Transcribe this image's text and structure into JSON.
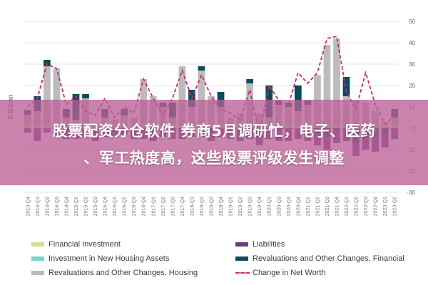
{
  "banner": {
    "line1": "股票配资分仓软件 券商5月调研忙，电子、医药",
    "line2": "、军工热度高，这些股票评级发生调整"
  },
  "legend": [
    {
      "label": "Financial Investment",
      "color": "#d4dc8e",
      "kind": "bar"
    },
    {
      "label": "Liabilities",
      "color": "#6b3b7e",
      "kind": "bar"
    },
    {
      "label": "Investment in New Housing Assets",
      "color": "#7fd0c8",
      "kind": "bar"
    },
    {
      "label": "Revaluations and Other Changes, Financial",
      "color": "#0d4a5e",
      "kind": "bar"
    },
    {
      "label": "Revaluations and Other Changes, Housing",
      "color": "#bcbcbc",
      "kind": "bar"
    },
    {
      "label": "Change in Net Worth",
      "color": "#c92d6e",
      "kind": "line"
    }
  ],
  "chart_data": {
    "type": "bar",
    "ylabel": "$ Billion",
    "ylim": [
      -30,
      50
    ],
    "yticks": [
      50,
      40,
      30,
      20,
      10,
      0,
      -10,
      -20,
      -30
    ],
    "categories": [
      "2013-Q4",
      "2014-Q1",
      "2014-Q2",
      "2014-Q3",
      "2014-Q4",
      "2015-Q1",
      "2015-Q2",
      "2015-Q3",
      "2015-Q4",
      "2016-Q1",
      "2016-Q2",
      "2016-Q3",
      "2016-Q4",
      "2017-Q1",
      "2017-Q2",
      "2017-Q3",
      "2017-Q4",
      "2018-Q1",
      "2018-Q2",
      "2018-Q3",
      "2018-Q4",
      "2019-Q1",
      "2019-Q2",
      "2019-Q3",
      "2019-Q4",
      "2020-Q1",
      "2020-Q2",
      "2020-Q3",
      "2020-Q4",
      "2021-Q1",
      "2021-Q2",
      "2021-Q3",
      "2021-Q4",
      "2022-Q1",
      "2022-Q2",
      "2022-Q3",
      "2022-Q4",
      "2023-Q1",
      "2023-Q2"
    ],
    "series": [
      {
        "name": "Financial Investment",
        "color": "#d4dc8e",
        "values": [
          2,
          1.5,
          1.5,
          1.5,
          1.5,
          1.5,
          1.5,
          1.5,
          1.5,
          1.5,
          1.5,
          1.5,
          1.5,
          1.5,
          1.5,
          1.5,
          1.5,
          1.5,
          1.5,
          1.5,
          1.5,
          1.5,
          1.5,
          1.5,
          1.5,
          1.5,
          1.5,
          1.5,
          1.5,
          1.5,
          1.5,
          1.5,
          1.5,
          1.5,
          1.5,
          1.5,
          1.5,
          1.5,
          1.5
        ]
      },
      {
        "name": "Investment in New Housing Assets",
        "color": "#7fd0c8",
        "values": [
          0.5,
          0.5,
          0.5,
          0.5,
          0.5,
          0.5,
          0.5,
          0.5,
          0.5,
          0.5,
          0.5,
          0.5,
          0.5,
          0.5,
          0.5,
          0.5,
          0.5,
          0.5,
          0.5,
          0.5,
          0.5,
          0.5,
          0.5,
          0.5,
          0.5,
          0.5,
          0.5,
          0.5,
          0.5,
          0.5,
          0.5,
          0.5,
          0.5,
          0.5,
          0.5,
          0.5,
          0.5,
          0.5,
          0.5
        ]
      },
      {
        "name": "Revaluations and Other Changes, Housing",
        "color": "#bcbcbc",
        "values": [
          4,
          6,
          27,
          26,
          3,
          2,
          12,
          0,
          3,
          2,
          4,
          3,
          21,
          13,
          8,
          3,
          27,
          8,
          25,
          13,
          8,
          3,
          5,
          19,
          5,
          3,
          9,
          8,
          6,
          9,
          23,
          37,
          40,
          13,
          11,
          10,
          6,
          1,
          3
        ]
      },
      {
        "name": "Revaluations and Other Changes, Financial",
        "color": "#0d4a5e",
        "values": [
          2,
          7,
          3,
          -1,
          4,
          12,
          2,
          -1,
          4,
          -1,
          3,
          -1,
          -1,
          -2,
          2,
          7,
          -1,
          8,
          2,
          -2,
          7,
          -1,
          -2,
          2,
          -3,
          15,
          2,
          2,
          12,
          2,
          -2,
          -4,
          -1,
          9,
          -7,
          -4,
          -4,
          -3,
          4
        ]
      },
      {
        "name": "Liabilities",
        "color": "#6b3b7e",
        "values": [
          -2,
          -6,
          -2,
          -3,
          -5,
          -5,
          -4,
          -5,
          -4,
          -3,
          -3,
          -4,
          -4,
          -4,
          -4,
          -5,
          -4,
          -4,
          -4,
          -4,
          -4,
          -4,
          -4,
          -5,
          -5,
          -5,
          -6,
          -6,
          -5,
          -6,
          -6,
          -6,
          -6,
          -6,
          -6,
          -6,
          -7,
          -6,
          -5
        ]
      }
    ],
    "net_worth": {
      "name": "Change in Net Worth",
      "color": "#c92d6e",
      "values": [
        10,
        14,
        30,
        28,
        11,
        15,
        8,
        6,
        14,
        5,
        10,
        7,
        23,
        14,
        6,
        14,
        27,
        14,
        25,
        15,
        9,
        7,
        4,
        18,
        -3,
        20,
        13,
        11,
        26,
        21,
        26,
        42,
        43,
        17,
        9,
        26,
        11,
        2,
        6
      ]
    },
    "grid": true,
    "legend_position": "bottom"
  }
}
